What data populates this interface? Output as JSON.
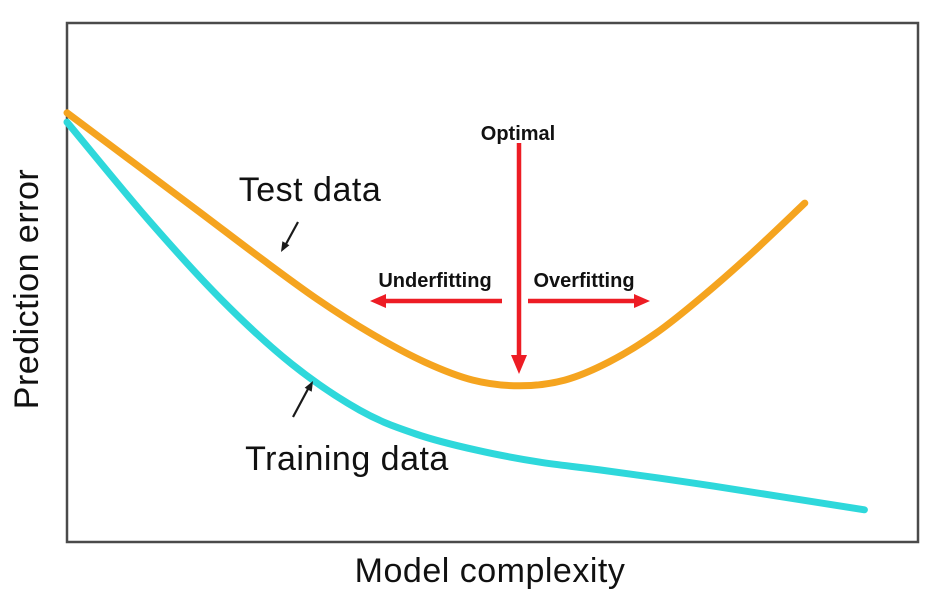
{
  "chart_data": {
    "type": "line",
    "title": "",
    "xlabel": "Model complexity",
    "ylabel": "Prediction error",
    "grid": false,
    "legend_position": "inline-labels-with-arrows",
    "x_axis": {
      "ticks": [],
      "range_normalized": [
        0,
        1
      ]
    },
    "y_axis": {
      "ticks": [],
      "range_normalized": [
        0,
        1
      ]
    },
    "series": [
      {
        "name": "Test data",
        "color": "#F5A41F",
        "shape": "u-curve (error falls then rises after optimal complexity)",
        "points_normalized_x_error": [
          [
            0.0,
            0.827
          ],
          [
            0.079,
            0.73
          ],
          [
            0.154,
            0.638
          ],
          [
            0.226,
            0.549
          ],
          [
            0.294,
            0.468
          ],
          [
            0.358,
            0.401
          ],
          [
            0.42,
            0.347
          ],
          [
            0.477,
            0.312
          ],
          [
            0.532,
            0.301
          ],
          [
            0.585,
            0.312
          ],
          [
            0.637,
            0.347
          ],
          [
            0.691,
            0.401
          ],
          [
            0.746,
            0.472
          ],
          [
            0.805,
            0.557
          ],
          [
            0.867,
            0.653
          ]
        ]
      },
      {
        "name": "Training data",
        "color": "#2ED8DB",
        "shape": "monotonic decay (error keeps decreasing with complexity)",
        "points_normalized_x_error": [
          [
            0.0,
            0.809
          ],
          [
            0.095,
            0.622
          ],
          [
            0.182,
            0.466
          ],
          [
            0.264,
            0.343
          ],
          [
            0.344,
            0.254
          ],
          [
            0.41,
            0.208
          ],
          [
            0.481,
            0.177
          ],
          [
            0.555,
            0.154
          ],
          [
            0.626,
            0.139
          ],
          [
            0.734,
            0.114
          ],
          [
            0.84,
            0.087
          ],
          [
            0.937,
            0.062
          ]
        ]
      }
    ],
    "annotations": {
      "optimal": {
        "label": "Optimal",
        "color": "#ED1C24",
        "meaning": "vertical red arrow pointing down to minimum of test-error curve"
      },
      "underfitting": {
        "label": "Underfitting",
        "color": "#ED1C24",
        "meaning": "red arrow pointing left of optimal complexity"
      },
      "overfitting": {
        "label": "Overfitting",
        "color": "#ED1C24",
        "meaning": "red arrow pointing right of optimal complexity"
      }
    }
  },
  "colors": {
    "background": "#FFFFFF",
    "axis_border": "#4A4A4A",
    "text": "#111111",
    "test_curve": "#F5A41F",
    "training_curve": "#2ED8DB",
    "annotation_red": "#ED1C24",
    "pointer_arrows": "#1A1A1A"
  }
}
